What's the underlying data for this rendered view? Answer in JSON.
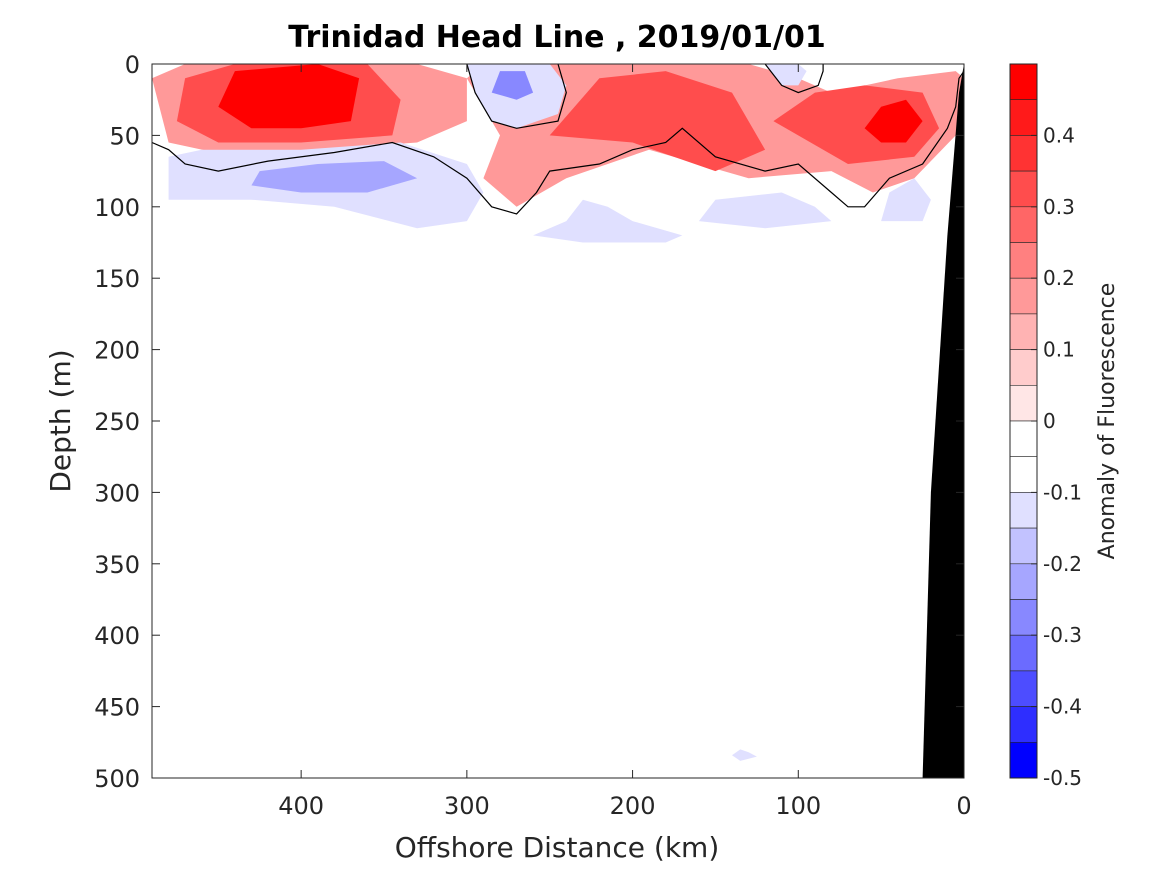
{
  "chart_data": {
    "type": "heatmap",
    "title": "Trinidad Head Line , 2019/01/01",
    "xlabel": "Offshore Distance (km)",
    "ylabel": "Depth (m)",
    "colorbar_label": "Anomaly of Fluorescence",
    "xlim": [
      490,
      0
    ],
    "x_reversed": true,
    "ylim": [
      0,
      500
    ],
    "y_reversed": true,
    "x_ticks": [
      400,
      300,
      200,
      100,
      0
    ],
    "x_tick_labels": [
      "400",
      "300",
      "200",
      "100",
      "0"
    ],
    "y_ticks": [
      0,
      50,
      100,
      150,
      200,
      250,
      300,
      350,
      400,
      450,
      500
    ],
    "y_tick_labels": [
      "0",
      "50",
      "100",
      "150",
      "200",
      "250",
      "300",
      "350",
      "400",
      "450",
      "500"
    ],
    "colorbar_ticks": [
      0.4,
      0.3,
      0.2,
      0.1,
      0,
      -0.1,
      -0.2,
      -0.3,
      -0.4,
      -0.5
    ],
    "colorbar_tick_labels": [
      "0.4",
      "0.3",
      "0.2",
      "0.1",
      "0",
      "-0.1",
      "-0.2",
      "-0.3",
      "-0.4",
      "-0.5"
    ],
    "clim": [
      -0.5,
      0.5
    ],
    "color_levels": [
      {
        "from": 0.45,
        "to": 0.5,
        "color": "#ff0000"
      },
      {
        "from": 0.4,
        "to": 0.45,
        "color": "#ff1a1a"
      },
      {
        "from": 0.35,
        "to": 0.4,
        "color": "#ff3333"
      },
      {
        "from": 0.3,
        "to": 0.35,
        "color": "#ff4d4d"
      },
      {
        "from": 0.25,
        "to": 0.3,
        "color": "#ff6666"
      },
      {
        "from": 0.2,
        "to": 0.25,
        "color": "#ff8080"
      },
      {
        "from": 0.15,
        "to": 0.2,
        "color": "#ff9999"
      },
      {
        "from": 0.1,
        "to": 0.15,
        "color": "#ffb3b3"
      },
      {
        "from": 0.05,
        "to": 0.1,
        "color": "#ffcccc"
      },
      {
        "from": 0.0,
        "to": 0.05,
        "color": "#ffe6e6"
      },
      {
        "from": -0.05,
        "to": 0.0,
        "color": "#ffffff"
      },
      {
        "from": -0.1,
        "to": -0.05,
        "color": "#ffffff"
      },
      {
        "from": -0.15,
        "to": -0.1,
        "color": "#e0e0ff"
      },
      {
        "from": -0.2,
        "to": -0.15,
        "color": "#c2c2ff"
      },
      {
        "from": -0.25,
        "to": -0.2,
        "color": "#a6a6ff"
      },
      {
        "from": -0.3,
        "to": -0.25,
        "color": "#8888ff"
      },
      {
        "from": -0.35,
        "to": -0.3,
        "color": "#6b6bff"
      },
      {
        "from": -0.4,
        "to": -0.35,
        "color": "#4d4dff"
      },
      {
        "from": -0.45,
        "to": -0.4,
        "color": "#2e2eff"
      },
      {
        "from": -0.5,
        "to": -0.45,
        "color": "#0000ff"
      }
    ],
    "anomaly_regions": [
      {
        "value": 0.15,
        "points": [
          [
            490,
            10
          ],
          [
            470,
            0
          ],
          [
            330,
            0
          ],
          [
            300,
            10
          ],
          [
            300,
            40
          ],
          [
            330,
            55
          ],
          [
            390,
            60
          ],
          [
            440,
            65
          ],
          [
            480,
            55
          ]
        ]
      },
      {
        "value": 0.3,
        "points": [
          [
            475,
            40
          ],
          [
            470,
            10
          ],
          [
            440,
            0
          ],
          [
            360,
            0
          ],
          [
            340,
            25
          ],
          [
            345,
            50
          ],
          [
            400,
            55
          ],
          [
            450,
            55
          ]
        ]
      },
      {
        "value": 0.45,
        "points": [
          [
            450,
            30
          ],
          [
            440,
            5
          ],
          [
            390,
            0
          ],
          [
            365,
            10
          ],
          [
            370,
            40
          ],
          [
            400,
            45
          ],
          [
            430,
            45
          ]
        ]
      },
      {
        "value": 0.15,
        "points": [
          [
            300,
            10
          ],
          [
            290,
            0
          ],
          [
            200,
            0
          ],
          [
            130,
            0
          ],
          [
            100,
            10
          ],
          [
            80,
            20
          ],
          [
            40,
            10
          ],
          [
            5,
            5
          ],
          [
            0,
            10
          ],
          [
            5,
            50
          ],
          [
            30,
            80
          ],
          [
            55,
            90
          ],
          [
            80,
            75
          ],
          [
            130,
            80
          ],
          [
            160,
            70
          ],
          [
            190,
            60
          ],
          [
            240,
            80
          ],
          [
            270,
            100
          ],
          [
            290,
            80
          ],
          [
            280,
            50
          ]
        ]
      },
      {
        "value": 0.3,
        "points": [
          [
            250,
            50
          ],
          [
            220,
            10
          ],
          [
            180,
            5
          ],
          [
            140,
            20
          ],
          [
            120,
            60
          ],
          [
            150,
            75
          ],
          [
            200,
            55
          ]
        ]
      },
      {
        "value": 0.3,
        "points": [
          [
            115,
            40
          ],
          [
            90,
            20
          ],
          [
            60,
            15
          ],
          [
            25,
            20
          ],
          [
            15,
            45
          ],
          [
            30,
            65
          ],
          [
            70,
            70
          ]
        ]
      },
      {
        "value": 0.45,
        "points": [
          [
            60,
            45
          ],
          [
            50,
            30
          ],
          [
            35,
            25
          ],
          [
            25,
            40
          ],
          [
            35,
            55
          ],
          [
            50,
            55
          ]
        ]
      },
      {
        "value": -0.15,
        "points": [
          [
            480,
            65
          ],
          [
            460,
            60
          ],
          [
            400,
            60
          ],
          [
            340,
            55
          ],
          [
            300,
            70
          ],
          [
            290,
            90
          ],
          [
            300,
            110
          ],
          [
            330,
            115
          ],
          [
            380,
            100
          ],
          [
            430,
            95
          ],
          [
            480,
            95
          ]
        ]
      },
      {
        "value": -0.25,
        "points": [
          [
            430,
            85
          ],
          [
            425,
            75
          ],
          [
            390,
            70
          ],
          [
            350,
            68
          ],
          [
            330,
            80
          ],
          [
            360,
            90
          ],
          [
            400,
            90
          ]
        ]
      },
      {
        "value": -0.15,
        "points": [
          [
            300,
            0
          ],
          [
            295,
            20
          ],
          [
            285,
            40
          ],
          [
            270,
            45
          ],
          [
            245,
            35
          ],
          [
            240,
            15
          ],
          [
            250,
            0
          ]
        ]
      },
      {
        "value": -0.3,
        "points": [
          [
            285,
            20
          ],
          [
            280,
            5
          ],
          [
            265,
            5
          ],
          [
            260,
            20
          ],
          [
            270,
            25
          ]
        ]
      },
      {
        "value": -0.15,
        "points": [
          [
            120,
            0
          ],
          [
            110,
            15
          ],
          [
            100,
            15
          ],
          [
            95,
            5
          ],
          [
            100,
            0
          ]
        ]
      },
      {
        "value": -0.12,
        "points": [
          [
            260,
            120
          ],
          [
            240,
            110
          ],
          [
            230,
            95
          ],
          [
            215,
            100
          ],
          [
            200,
            110
          ],
          [
            170,
            120
          ],
          [
            180,
            125
          ],
          [
            230,
            125
          ]
        ]
      },
      {
        "value": -0.12,
        "points": [
          [
            160,
            110
          ],
          [
            150,
            95
          ],
          [
            110,
            90
          ],
          [
            90,
            100
          ],
          [
            80,
            110
          ],
          [
            120,
            115
          ]
        ]
      },
      {
        "value": -0.12,
        "points": [
          [
            50,
            110
          ],
          [
            45,
            90
          ],
          [
            30,
            80
          ],
          [
            20,
            95
          ],
          [
            25,
            110
          ]
        ]
      },
      {
        "value": -0.12,
        "points": [
          [
            135,
            480
          ],
          [
            130,
            482
          ],
          [
            125,
            485
          ],
          [
            135,
            488
          ],
          [
            140,
            484
          ]
        ]
      }
    ],
    "zero_contours": [
      [
        [
          490,
          55
        ],
        [
          480,
          60
        ],
        [
          470,
          70
        ],
        [
          450,
          75
        ],
        [
          420,
          68
        ],
        [
          380,
          62
        ],
        [
          345,
          55
        ],
        [
          320,
          65
        ],
        [
          300,
          80
        ],
        [
          285,
          100
        ],
        [
          270,
          105
        ],
        [
          258,
          90
        ],
        [
          250,
          75
        ],
        [
          220,
          70
        ],
        [
          200,
          60
        ],
        [
          180,
          55
        ],
        [
          170,
          45
        ],
        [
          150,
          65
        ],
        [
          120,
          75
        ],
        [
          100,
          70
        ],
        [
          80,
          90
        ],
        [
          70,
          100
        ],
        [
          60,
          100
        ],
        [
          45,
          80
        ],
        [
          25,
          70
        ],
        [
          10,
          45
        ],
        [
          5,
          30
        ],
        [
          3,
          10
        ],
        [
          0,
          5
        ]
      ],
      [
        [
          300,
          0
        ],
        [
          295,
          20
        ],
        [
          285,
          40
        ],
        [
          270,
          45
        ],
        [
          245,
          40
        ],
        [
          240,
          20
        ],
        [
          245,
          0
        ]
      ],
      [
        [
          120,
          0
        ],
        [
          110,
          15
        ],
        [
          100,
          20
        ],
        [
          88,
          15
        ],
        [
          85,
          5
        ],
        [
          85,
          0
        ]
      ]
    ],
    "land": {
      "points": [
        [
          25,
          500
        ],
        [
          0,
          500
        ],
        [
          0,
          0
        ],
        [
          3,
          20
        ],
        [
          10,
          120
        ],
        [
          20,
          300
        ],
        [
          25,
          500
        ]
      ],
      "color": "#000000"
    }
  }
}
